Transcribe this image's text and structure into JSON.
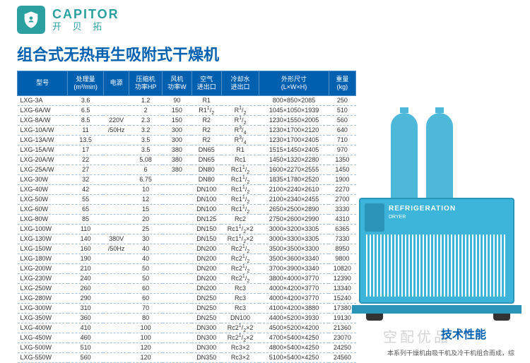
{
  "brand": {
    "en": "CAPITOR",
    "cn": "开 贝 拓"
  },
  "title": "组合式无热再生吸附式干燥机",
  "headers": [
    "型号",
    "处理量\n(m³/min)",
    "电源",
    "压缩机\n功率HP",
    "风机\n功率W",
    "空气\n进出口",
    "冷却水\n进出口",
    "外形尺寸\n(L×W×H)",
    "重量\n(kg)"
  ],
  "rows": [
    [
      "LXG-3A",
      "3.6",
      "",
      "1.2",
      "90",
      "R1",
      "",
      "800×850×2085",
      "250"
    ],
    [
      "LXG-6A/W",
      "6.5",
      "",
      "2",
      "150",
      "R1¹/₂",
      "R¹/₂",
      "1045×1050×1939",
      "510"
    ],
    [
      "LXG-8A/W",
      "8.5",
      "220V",
      "2.3",
      "150",
      "R2",
      "R¹/₂",
      "1230×1550×2005",
      "560"
    ],
    [
      "LXG-10A/W",
      "11",
      "/50Hz",
      "3.2",
      "300",
      "R2",
      "R³/₄",
      "1230×1700×2120",
      "640"
    ],
    [
      "LXG-13A/W",
      "13.5",
      "",
      "3.5",
      "300",
      "R2",
      "R³/₄",
      "1230×1700×2405",
      "710"
    ],
    [
      "LXG-15A/W",
      "17",
      "",
      "3.5",
      "380",
      "DN65",
      "R1",
      "1515×1450×2405",
      "970"
    ],
    [
      "LXG-20A/W",
      "22",
      "",
      "5.08",
      "380",
      "DN65",
      "Rc1",
      "1450×1320×2280",
      "1350"
    ],
    [
      "LXG-25A/W",
      "27",
      "",
      "6",
      "380",
      "DN80",
      "Rc1¹/₂",
      "1600×2270×2555",
      "1450"
    ],
    [
      "LXG-30W",
      "32",
      "",
      "6.75",
      "",
      "DN80",
      "Rc1¹/₂",
      "1835×1780×2520",
      "1900"
    ],
    [
      "LXG-40W",
      "42",
      "",
      "10",
      "",
      "DN100",
      "Rc1¹/₂",
      "2100×2240×2610",
      "2270"
    ],
    [
      "LXG-50W",
      "55",
      "",
      "12",
      "",
      "DN100",
      "Rc1¹/₂",
      "2100×2340×2455",
      "2700"
    ],
    [
      "LXG-60W",
      "65",
      "",
      "15",
      "",
      "DN100",
      "Rc1¹/₂",
      "2650×2500×2890",
      "3330"
    ],
    [
      "LXG-80W",
      "85",
      "",
      "20",
      "",
      "DN125",
      "Rc2",
      "2750×2600×2990",
      "4310"
    ],
    [
      "LXG-100W",
      "110",
      "",
      "25",
      "",
      "DN150",
      "Rc1¹/₂×2",
      "3000×3200×3305",
      "6365"
    ],
    [
      "LXG-130W",
      "140",
      "380V",
      "30",
      "",
      "DN150",
      "Rc1¹/₂×2",
      "3000×3300×3305",
      "7330"
    ],
    [
      "LXG-150W",
      "160",
      "/50Hz",
      "40",
      "",
      "DN200",
      "Rc2¹/₂",
      "3500×3500×3300",
      "8950"
    ],
    [
      "LXG-180W",
      "190",
      "",
      "40",
      "",
      "DN200",
      "Rc2¹/₂",
      "3500×3600×3340",
      "9800"
    ],
    [
      "LXG-200W",
      "210",
      "",
      "50",
      "",
      "DN200",
      "Rc2¹/₂",
      "3700×3900×3340",
      "10820"
    ],
    [
      "LXG-230W",
      "240",
      "",
      "50",
      "",
      "DN200",
      "Rc2¹/₂",
      "3800×4000×3770",
      "12390"
    ],
    [
      "LXG-250W",
      "260",
      "",
      "60",
      "",
      "DN200",
      "Rc3",
      "4000×4200×3770",
      "13340"
    ],
    [
      "LXG-280W",
      "290",
      "",
      "60",
      "",
      "DN250",
      "Rc3",
      "4000×4200×3770",
      "15240"
    ],
    [
      "LXG-300W",
      "310",
      "",
      "70",
      "",
      "DN250",
      "Rc3",
      "4100×4200×3880",
      "17380"
    ],
    [
      "LXG-350W",
      "360",
      "",
      "80",
      "",
      "DN250",
      "DN100",
      "4400×5200×3930",
      "19130"
    ],
    [
      "LXG-400W",
      "410",
      "",
      "100",
      "",
      "DN300",
      "Rc2¹/₂×2",
      "4500×5200×4200",
      "21360"
    ],
    [
      "LXG-450W",
      "460",
      "",
      "100",
      "",
      "DN300",
      "Rc2¹/₂×2",
      "4700×5400×4250",
      "23070"
    ],
    [
      "LXG-500W",
      "510",
      "",
      "120",
      "",
      "DN300",
      "Rc3×2",
      "4800×5400×4250",
      "24250"
    ],
    [
      "LXG-550W",
      "560",
      "",
      "120",
      "",
      "DN350",
      "Rc3×2",
      "5100×5400×4250",
      "24560"
    ]
  ],
  "product": {
    "label": "REFRIGERATION",
    "sub": "DRYER"
  },
  "tech": {
    "title": "技术性能",
    "note": "本系列干燥机由吸干机及冷干机组合而成，综",
    "watermark": "空配优品"
  }
}
